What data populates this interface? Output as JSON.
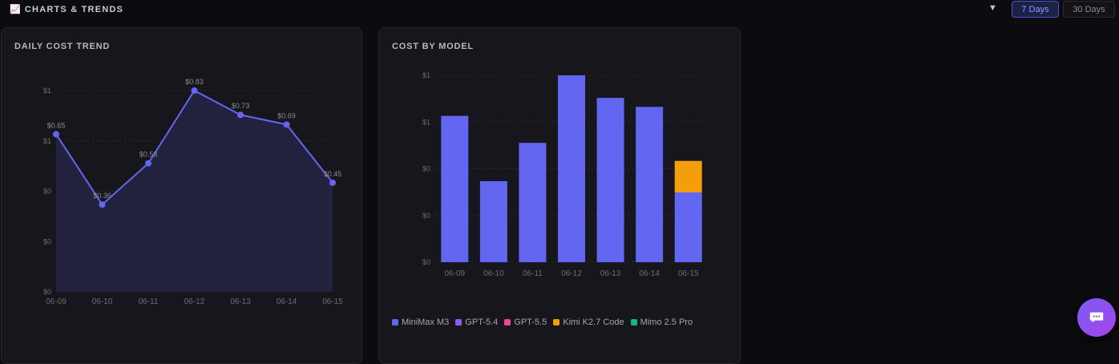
{
  "header": {
    "emoji": "📈",
    "title": "CHARTS & TRENDS",
    "toggle": "▼",
    "range_buttons": [
      "7 Days",
      "30 Days"
    ],
    "active_range": "7 Days"
  },
  "charts": {
    "daily": {
      "title": "DAILY COST TREND",
      "accent": "#6366f1",
      "fill": "#22223e",
      "y_tick_labels": [
        "$1",
        "$1",
        "$0",
        "$0",
        "$0"
      ]
    },
    "model": {
      "title": "COST BY MODEL",
      "y_tick_labels": [
        "$1",
        "$1",
        "$0",
        "$0",
        "$0"
      ]
    }
  },
  "legend": [
    {
      "name": "MiniMax M3",
      "color": "#6366f1"
    },
    {
      "name": "GPT-5.4",
      "color": "#8b5cf6"
    },
    {
      "name": "GPT-5.5",
      "color": "#ec4899"
    },
    {
      "name": "Kimi K2.7 Code",
      "color": "#f59e0b"
    },
    {
      "name": "Mimo 2.5 Pro",
      "color": "#10b981"
    }
  ],
  "chart_data": [
    {
      "type": "area",
      "title": "DAILY COST TREND",
      "categories": [
        "06-09",
        "06-10",
        "06-11",
        "06-12",
        "06-13",
        "06-14",
        "06-15"
      ],
      "values": [
        0.65,
        0.36,
        0.53,
        0.83,
        0.73,
        0.69,
        0.45
      ],
      "point_labels": [
        "$0.65",
        "$0.36",
        "$0.53",
        "$0.83",
        "$0.73",
        "$0.69",
        "$0.45"
      ],
      "ylim": [
        0,
        0.83
      ],
      "grid": true
    },
    {
      "type": "bar",
      "stacked": true,
      "title": "COST BY MODEL",
      "categories": [
        "06-09",
        "06-10",
        "06-11",
        "06-12",
        "06-13",
        "06-14",
        "06-15"
      ],
      "series": [
        {
          "name": "MiniMax M3",
          "color": "#6366f1",
          "values": [
            0.65,
            0.36,
            0.53,
            0.83,
            0.73,
            0.69,
            0.31
          ]
        },
        {
          "name": "GPT-5.4",
          "color": "#8b5cf6",
          "values": [
            0,
            0,
            0,
            0,
            0,
            0,
            0
          ]
        },
        {
          "name": "GPT-5.5",
          "color": "#ec4899",
          "values": [
            0,
            0,
            0,
            0,
            0,
            0,
            0
          ]
        },
        {
          "name": "Kimi K2.7 Code",
          "color": "#f59e0b",
          "values": [
            0,
            0,
            0,
            0,
            0,
            0,
            0.14
          ]
        },
        {
          "name": "Mimo 2.5 Pro",
          "color": "#10b981",
          "values": [
            0,
            0,
            0,
            0,
            0,
            0,
            0
          ]
        }
      ],
      "ylim": [
        0,
        0.83
      ],
      "grid": true,
      "legend_position": "bottom-left"
    }
  ]
}
